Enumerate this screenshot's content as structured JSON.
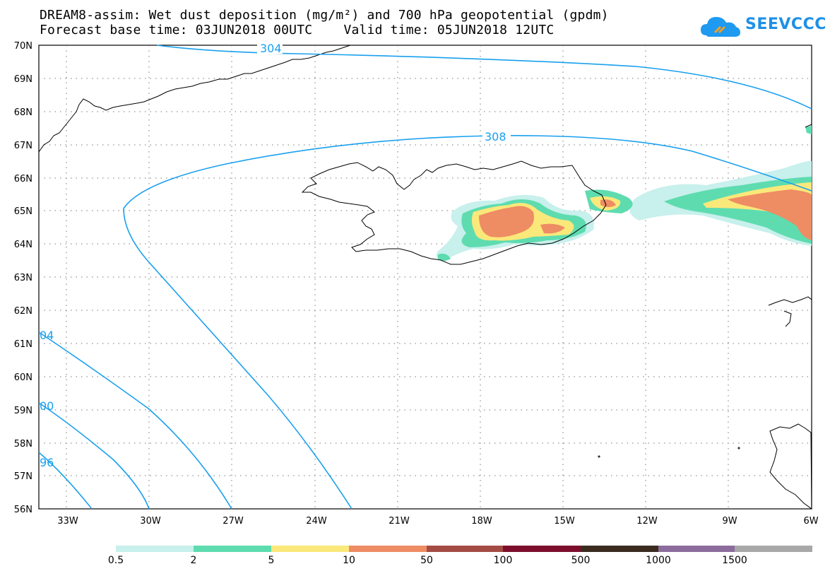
{
  "header": {
    "title_line1": "DREAM8-assim: Wet dust deposition (mg/m²) and 700 hPa geopotential (gpdm)",
    "title_line2": "Forecast base time: 03JUN2018 00UTC    Valid time: 05JUN2018 12UTC"
  },
  "logo": {
    "text": "SEEVCCC",
    "icon": "cloud-logo-icon"
  },
  "map": {
    "lat_labels": [
      "70N",
      "69N",
      "68N",
      "67N",
      "66N",
      "65N",
      "64N",
      "63N",
      "62N",
      "61N",
      "60N",
      "59N",
      "58N",
      "57N",
      "56N"
    ],
    "lon_labels": [
      "33W",
      "30W",
      "27W",
      "24W",
      "21W",
      "18W",
      "15W",
      "12W",
      "9W",
      "6W"
    ],
    "contour_labels": [
      "304",
      "308",
      "04",
      "00",
      "96"
    ],
    "contour_color": "#19a0ee"
  },
  "colorbar": {
    "labels": [
      "0.5",
      "2",
      "5",
      "10",
      "50",
      "100",
      "500",
      "1000",
      "1500"
    ],
    "colors": [
      "#c8f0ec",
      "#5edcb0",
      "#fbe87a",
      "#ee8c64",
      "#a44c44",
      "#7c0e2c",
      "#3c2c20",
      "#8c6c9c",
      "#a8a8a8"
    ]
  }
}
